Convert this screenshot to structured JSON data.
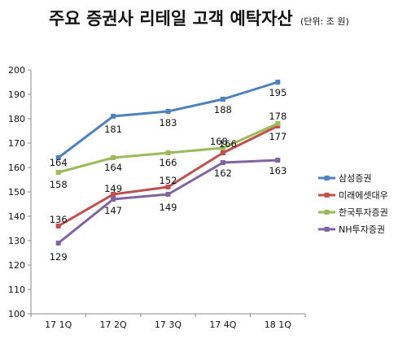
{
  "chart_data": {
    "type": "line",
    "title": "주요 증권사 리테일 고객 예탁자산",
    "subtitle": "(단위: 조 원)",
    "categories": [
      "17 1Q",
      "17 2Q",
      "17 3Q",
      "17 4Q",
      "18 1Q"
    ],
    "ylim": [
      100,
      200
    ],
    "yticks": [
      100,
      110,
      120,
      130,
      140,
      150,
      160,
      170,
      180,
      190,
      200
    ],
    "grid": false,
    "legend_position": "right",
    "series": [
      {
        "name": "삼성증권",
        "color": "#4F81BD",
        "values": [
          164,
          181,
          183,
          188,
          195
        ]
      },
      {
        "name": "미래에셋대우",
        "color": "#C0504D",
        "values": [
          136,
          149,
          152,
          166,
          177
        ]
      },
      {
        "name": "한국투자증권",
        "color": "#9BBB59",
        "values": [
          158,
          164,
          166,
          168,
          178
        ]
      },
      {
        "name": "NH투자증권",
        "color": "#8064A2",
        "values": [
          129,
          147,
          149,
          162,
          163
        ]
      }
    ]
  }
}
